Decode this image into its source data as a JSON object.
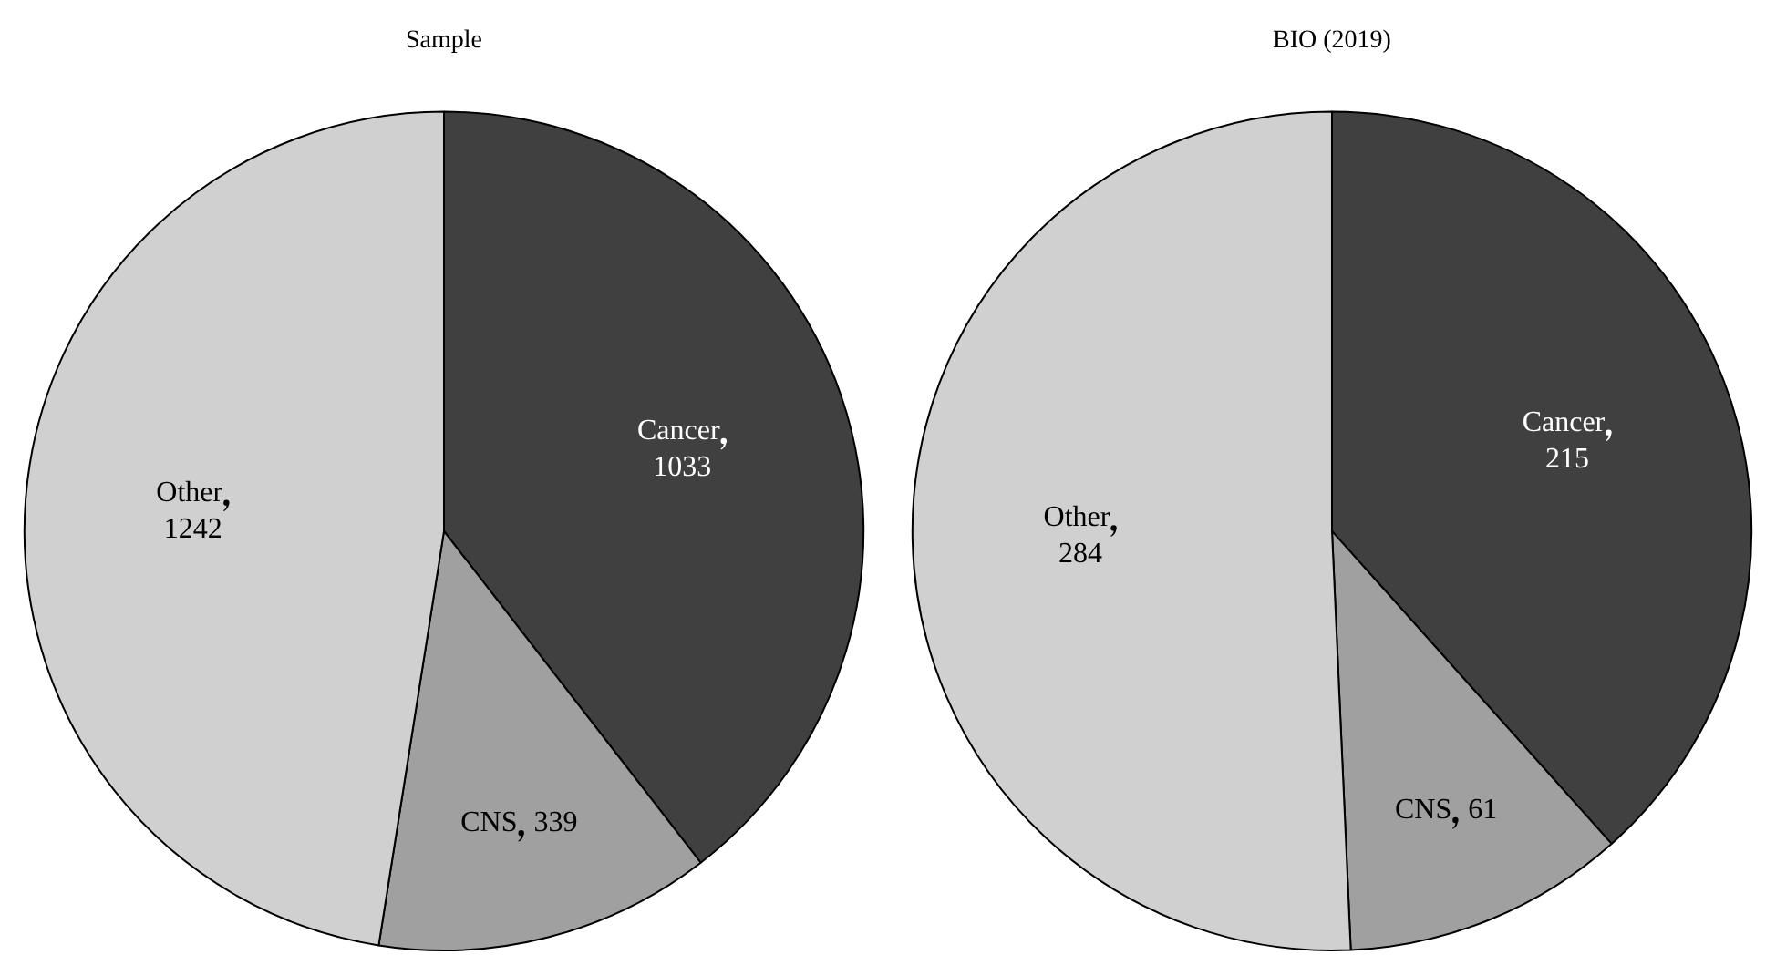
{
  "chart_data": [
    {
      "type": "pie",
      "title": "Sample",
      "categories": [
        "Cancer",
        "CNS",
        "Other"
      ],
      "values": [
        1033,
        339,
        1242
      ],
      "colors": [
        "#404040",
        "#a0a0a0",
        "#d0d0d0"
      ],
      "data_labels": true,
      "legend": false
    },
    {
      "type": "pie",
      "title": "BIO (2019)",
      "categories": [
        "Cancer",
        "CNS",
        "Other"
      ],
      "values": [
        215,
        61,
        284
      ],
      "colors": [
        "#404040",
        "#a0a0a0",
        "#d0d0d0"
      ],
      "data_labels": true,
      "legend": false
    }
  ]
}
